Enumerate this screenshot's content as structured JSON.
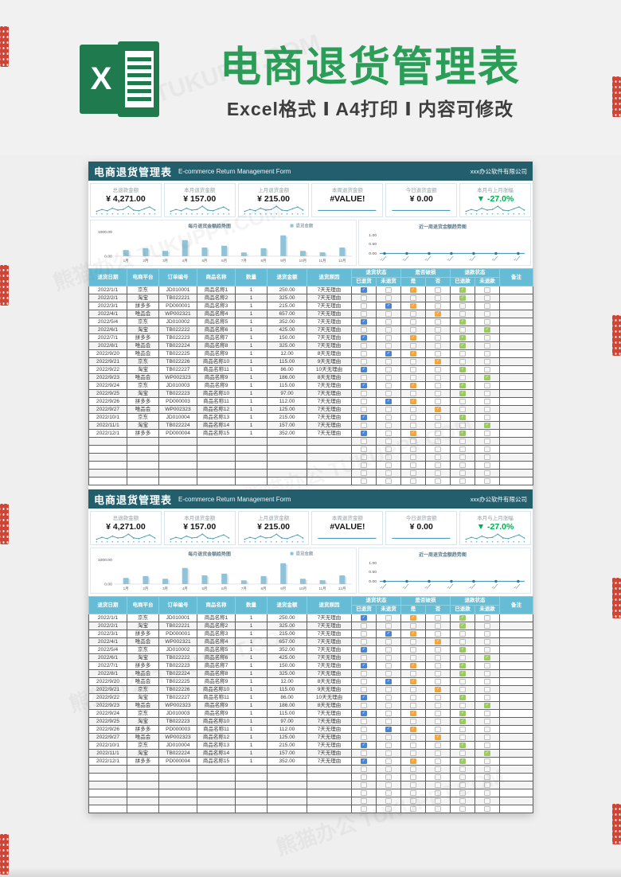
{
  "hero": {
    "title": "电商退货管理表",
    "subtitle": "Excel格式 Ⅰ A4打印 Ⅰ 内容可修改",
    "logo_letter": "X"
  },
  "sheet": {
    "title": "电商退货管理表",
    "subtitle_en": "E-commerce Return Management Form",
    "company": "xxx办公软件有限公司",
    "kpis": [
      {
        "label": "总退款金额",
        "value": "¥ 4,271.00",
        "spark": "wave"
      },
      {
        "label": "本月退货金额",
        "value": "¥ 157.00",
        "spark": "wave"
      },
      {
        "label": "上月退货金额",
        "value": "¥ 215.00",
        "spark": "wave"
      },
      {
        "label": "本周退货金额",
        "value": "#VALUE!",
        "spark": "flat"
      },
      {
        "label": "今日退货金额",
        "value": "¥ 0.00",
        "spark": "flat"
      },
      {
        "label": "本月与上月涨幅",
        "value": "▼ -27.0%",
        "spark": "wave",
        "color": "#00b050"
      }
    ],
    "spark_values": [
      5,
      8,
      6,
      10,
      7,
      8,
      13,
      7,
      6,
      9,
      12,
      7
    ],
    "table": {
      "headers": [
        "退货日期",
        "电商平台",
        "订单编号",
        "商品名称",
        "数量",
        "退货金额",
        "退货原因"
      ],
      "groups": [
        {
          "label": "退货状态",
          "subs": [
            "已退货",
            "未退货"
          ]
        },
        {
          "label": "是否破损",
          "subs": [
            "是",
            "否"
          ]
        },
        {
          "label": "退款状态",
          "subs": [
            "已退款",
            "未退款"
          ]
        }
      ],
      "note_header": "备注",
      "rows": [
        {
          "date": "2022/1/1",
          "platform": "京东",
          "order": "JD010001",
          "product": "商品名称1",
          "qty": "1",
          "amount": "250.00",
          "reason": "7天无理由",
          "checks": [
            1,
            0,
            1,
            0,
            1,
            0
          ]
        },
        {
          "date": "2022/2/1",
          "platform": "淘宝",
          "order": "TB022221",
          "product": "商品名称2",
          "qty": "1",
          "amount": "325.00",
          "reason": "7天无理由",
          "checks": [
            0,
            0,
            0,
            0,
            1,
            0
          ]
        },
        {
          "date": "2022/3/1",
          "platform": "拼多多",
          "order": "PD000001",
          "product": "商品名称3",
          "qty": "1",
          "amount": "215.00",
          "reason": "7天无理由",
          "checks": [
            0,
            1,
            1,
            0,
            0,
            0
          ]
        },
        {
          "date": "2022/4/1",
          "platform": "唯品会",
          "order": "WP002321",
          "product": "商品名称4",
          "qty": "1",
          "amount": "657.00",
          "reason": "7天无理由",
          "checks": [
            0,
            0,
            0,
            1,
            0,
            0
          ]
        },
        {
          "date": "2022/5/4",
          "platform": "京东",
          "order": "JD010002",
          "product": "商品名称5",
          "qty": "1",
          "amount": "352.00",
          "reason": "7天无理由",
          "checks": [
            1,
            0,
            0,
            0,
            1,
            0
          ]
        },
        {
          "date": "2022/6/1",
          "platform": "淘宝",
          "order": "TB022222",
          "product": "商品名称6",
          "qty": "1",
          "amount": "425.00",
          "reason": "7天无理由",
          "checks": [
            0,
            0,
            0,
            0,
            0,
            1
          ]
        },
        {
          "date": "2022/7/1",
          "platform": "拼多多",
          "order": "TB022223",
          "product": "商品名称7",
          "qty": "1",
          "amount": "150.00",
          "reason": "7天无理由",
          "checks": [
            1,
            0,
            1,
            0,
            1,
            0
          ]
        },
        {
          "date": "2022/8/1",
          "platform": "唯品会",
          "order": "TB022224",
          "product": "商品名称8",
          "qty": "1",
          "amount": "325.00",
          "reason": "7天无理由",
          "checks": [
            0,
            0,
            0,
            0,
            1,
            0
          ]
        },
        {
          "date": "2022/9/20",
          "platform": "唯品会",
          "order": "TB022225",
          "product": "商品名称9",
          "qty": "1",
          "amount": "12.00",
          "reason": "8天无理由",
          "checks": [
            0,
            1,
            1,
            0,
            0,
            0
          ]
        },
        {
          "date": "2022/9/21",
          "platform": "京东",
          "order": "TB022226",
          "product": "商品名称10",
          "qty": "1",
          "amount": "115.00",
          "reason": "9天无理由",
          "checks": [
            0,
            0,
            0,
            1,
            0,
            0
          ]
        },
        {
          "date": "2022/9/22",
          "platform": "淘宝",
          "order": "TB022227",
          "product": "商品名称11",
          "qty": "1",
          "amount": "86.00",
          "reason": "10天无理由",
          "checks": [
            1,
            0,
            0,
            0,
            1,
            0
          ]
        },
        {
          "date": "2022/9/23",
          "platform": "唯品会",
          "order": "WP002323",
          "product": "商品名称9",
          "qty": "1",
          "amount": "186.00",
          "reason": "8天无理由",
          "checks": [
            0,
            0,
            0,
            0,
            0,
            1
          ]
        },
        {
          "date": "2022/9/24",
          "platform": "京东",
          "order": "JD010003",
          "product": "商品名称9",
          "qty": "1",
          "amount": "115.00",
          "reason": "7天无理由",
          "checks": [
            1,
            0,
            1,
            0,
            1,
            0
          ]
        },
        {
          "date": "2022/9/25",
          "platform": "淘宝",
          "order": "TB022223",
          "product": "商品名称10",
          "qty": "1",
          "amount": "97.00",
          "reason": "7天无理由",
          "checks": [
            0,
            0,
            0,
            0,
            1,
            0
          ]
        },
        {
          "date": "2022/9/26",
          "platform": "拼多多",
          "order": "PD000003",
          "product": "商品名称11",
          "qty": "1",
          "amount": "112.00",
          "reason": "7天无理由",
          "checks": [
            0,
            1,
            1,
            0,
            0,
            0
          ]
        },
        {
          "date": "2022/9/27",
          "platform": "唯品会",
          "order": "WP002323",
          "product": "商品名称12",
          "qty": "1",
          "amount": "125.00",
          "reason": "7天无理由",
          "checks": [
            0,
            0,
            0,
            1,
            0,
            0
          ]
        },
        {
          "date": "2022/10/1",
          "platform": "京东",
          "order": "JD010004",
          "product": "商品名称13",
          "qty": "1",
          "amount": "215.00",
          "reason": "7天无理由",
          "checks": [
            1,
            0,
            0,
            0,
            1,
            0
          ]
        },
        {
          "date": "2022/11/1",
          "platform": "淘宝",
          "order": "TB022224",
          "product": "商品名称14",
          "qty": "1",
          "amount": "157.00",
          "reason": "7天无理由",
          "checks": [
            0,
            0,
            0,
            0,
            0,
            1
          ]
        },
        {
          "date": "2022/12/1",
          "platform": "拼多多",
          "order": "PD000004",
          "product": "商品名称15",
          "qty": "1",
          "amount": "352.00",
          "reason": "7天无理由",
          "checks": [
            1,
            0,
            1,
            0,
            1,
            0
          ]
        }
      ]
    }
  },
  "chart_data": [
    {
      "type": "bar",
      "title": "每月退货金额趋势图",
      "legend": [
        "退货金额"
      ],
      "legend_position": "top-right",
      "categories": [
        "1月",
        "2月",
        "3月",
        "4月",
        "5月",
        "6月",
        "7月",
        "8月",
        "9月",
        "10月",
        "11月",
        "12月"
      ],
      "values": [
        250,
        325,
        215,
        657,
        352,
        425,
        150,
        325,
        848,
        215,
        157,
        352
      ],
      "ylim": [
        0,
        1000
      ],
      "yticks": [
        "0.00",
        "1000.00"
      ],
      "grid": false
    },
    {
      "type": "line",
      "title": "近一周退货金额趋势图",
      "x_points": 7,
      "values": [
        0,
        0,
        0,
        0,
        0,
        0,
        0
      ],
      "ylim": [
        0,
        1
      ],
      "yticks": [
        "0.00",
        "0.50",
        "1.00"
      ],
      "grid": false
    }
  ],
  "colors": {
    "titlebar": "#235e6d",
    "table_header": "#66bcd4",
    "bar_fill": "#8fc3d9",
    "line_stroke": "#4f9cb8",
    "check_returned": "#4a86d8",
    "check_damaged": "#f5a63a",
    "check_refunded": "#9acc5e",
    "kpi_up_down": "#00b050",
    "hero_green": "#2a9d57"
  },
  "watermark": {
    "brand": "熊猫办公",
    "site": "TUKUPPT.COM"
  },
  "layout": {
    "empty_rows": [
      6,
      6
    ]
  }
}
